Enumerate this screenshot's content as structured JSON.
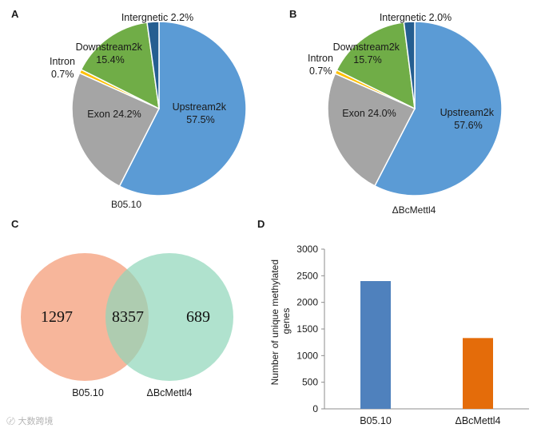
{
  "panels": {
    "a": "A",
    "b": "B",
    "c": "C",
    "d": "D"
  },
  "chart_data": [
    {
      "type": "pie",
      "title": "B05.10",
      "slices": [
        {
          "name": "Upstream2k",
          "value": 57.5,
          "color": "#5b9bd5",
          "label_lines": [
            "Upstream2k",
            "57.5%"
          ]
        },
        {
          "name": "Exon",
          "value": 24.2,
          "color": "#a5a5a5",
          "label_lines": [
            "Exon 24.2%"
          ]
        },
        {
          "name": "Intron",
          "value": 0.7,
          "color": "#ffc000",
          "label_lines": [
            "Intron",
            "0.7%"
          ]
        },
        {
          "name": "Downstream2k",
          "value": 15.4,
          "color": "#70ad47",
          "label_lines": [
            "Downstream2k",
            "15.4%"
          ]
        },
        {
          "name": "Intergnetic",
          "value": 2.2,
          "color": "#255e91",
          "label_lines": [
            "Intergnetic 2.2%"
          ]
        }
      ]
    },
    {
      "type": "pie",
      "title": "ΔBcMettl4",
      "slices": [
        {
          "name": "Upstream2k",
          "value": 57.6,
          "color": "#5b9bd5",
          "label_lines": [
            "Upstream2k",
            "57.6%"
          ]
        },
        {
          "name": "Exon",
          "value": 24.0,
          "color": "#a5a5a5",
          "label_lines": [
            "Exon 24.0%"
          ]
        },
        {
          "name": "Intron",
          "value": 0.7,
          "color": "#ffc000",
          "label_lines": [
            "Intron",
            "0.7%"
          ]
        },
        {
          "name": "Downstream2k",
          "value": 15.7,
          "color": "#70ad47",
          "label_lines": [
            "Downstream2k",
            "15.7%"
          ]
        },
        {
          "name": "Intergnetic",
          "value": 2.0,
          "color": "#255e91",
          "label_lines": [
            "Intergnetic 2.0%"
          ]
        }
      ]
    },
    {
      "type": "venn",
      "sets": [
        {
          "name": "B05.10",
          "only": 1297,
          "color": "#f6a98a"
        },
        {
          "name": "ΔBcMettl4",
          "only": 689,
          "color": "#8fd6b9"
        }
      ],
      "overlap": 8357
    },
    {
      "type": "bar",
      "categories": [
        "B05.10",
        "ΔBcMettl4"
      ],
      "values": [
        2400,
        1330
      ],
      "colors": [
        "#4f81bd",
        "#e46c0a"
      ],
      "ylabel_lines": [
        "Number of unique methylated",
        "genes"
      ],
      "ylim": [
        0,
        3000
      ],
      "yticks": [
        0,
        500,
        1000,
        1500,
        2000,
        2500,
        3000
      ]
    }
  ],
  "watermark": "大数跨境"
}
